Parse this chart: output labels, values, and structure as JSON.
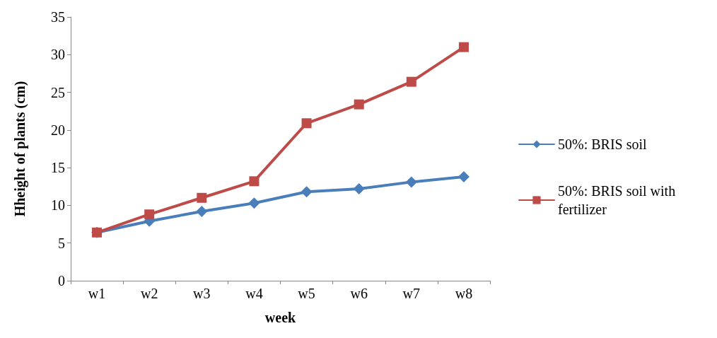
{
  "chart_data": {
    "type": "line",
    "xlabel": "week",
    "ylabel": "Hheight of plants (cm)",
    "categories": [
      "w1",
      "w2",
      "w3",
      "w4",
      "w5",
      "w6",
      "w7",
      "w8"
    ],
    "series": [
      {
        "name": "50%: BRIS soil",
        "color": "#4a7ebb",
        "marker": "diamond",
        "values": [
          6.4,
          7.9,
          9.2,
          10.3,
          11.8,
          12.2,
          13.1,
          13.8
        ]
      },
      {
        "name": "50%: BRIS soil with\nfertilizer",
        "color": "#be4b48",
        "marker": "square",
        "values": [
          6.4,
          8.8,
          11.0,
          13.2,
          20.9,
          23.4,
          26.4,
          31.0
        ]
      }
    ],
    "ylim": [
      0,
      35
    ],
    "yticks": [
      0,
      5,
      10,
      15,
      20,
      25,
      30,
      35
    ],
    "grid": false,
    "legend": "right",
    "line_style": "solid"
  }
}
